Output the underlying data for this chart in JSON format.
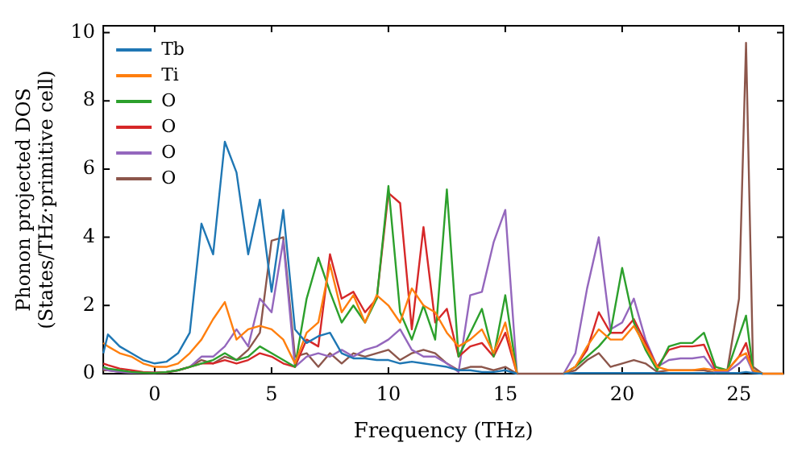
{
  "chart_data": {
    "type": "line",
    "xlabel": "Frequency (THz)",
    "ylabel": "Phonon projected DOS\n(States/THz·primitive cell)",
    "x": [
      -2.2,
      -2,
      -1.5,
      -1,
      -0.5,
      0,
      0.5,
      1,
      1.5,
      2,
      2.5,
      3,
      3.5,
      4,
      4.5,
      5,
      5.5,
      6,
      6.5,
      7,
      7.5,
      8,
      8.5,
      9,
      9.5,
      10,
      10.5,
      11,
      11.5,
      12,
      12.5,
      13,
      13.5,
      14,
      14.5,
      15,
      15.5,
      16,
      16.5,
      17,
      17.5,
      18,
      18.5,
      19,
      19.5,
      20,
      20.5,
      21,
      21.5,
      22,
      22.5,
      23,
      23.5,
      24,
      24.5,
      25,
      25.3,
      25.6,
      26,
      26.5,
      26.9
    ],
    "series": [
      {
        "name": "Tb",
        "color": "#1f77b4",
        "values": [
          0.6,
          1.15,
          0.8,
          0.6,
          0.4,
          0.3,
          0.35,
          0.6,
          1.2,
          4.4,
          3.5,
          6.8,
          5.9,
          3.5,
          5.1,
          2.4,
          4.8,
          1.3,
          0.9,
          1.1,
          1.2,
          0.6,
          0.45,
          0.45,
          0.4,
          0.4,
          0.3,
          0.35,
          0.3,
          0.25,
          0.2,
          0.1,
          0.1,
          0.05,
          0.05,
          0.1,
          0,
          null,
          null,
          null,
          0,
          0.02,
          0.02,
          0.02,
          0.02,
          0.02,
          0.02,
          0.02,
          0.02,
          0.02,
          0.02,
          0.02,
          0.02,
          0.02,
          0.02,
          0.02,
          0.05,
          0.02,
          0,
          null,
          null
        ]
      },
      {
        "name": "Ti",
        "color": "#ff7f0e",
        "values": [
          0.9,
          0.8,
          0.6,
          0.5,
          0.3,
          0.2,
          0.2,
          0.3,
          0.6,
          1.0,
          1.6,
          2.1,
          1.0,
          1.3,
          1.4,
          1.3,
          1.0,
          0.3,
          1.2,
          1.5,
          3.2,
          1.8,
          2.3,
          1.5,
          2.3,
          2.0,
          1.5,
          2.5,
          2.0,
          1.8,
          1.2,
          0.8,
          1.0,
          1.3,
          0.6,
          1.5,
          0,
          null,
          null,
          null,
          0,
          0.2,
          0.8,
          1.3,
          1.0,
          1.0,
          1.4,
          0.8,
          0.2,
          0.1,
          0.1,
          0.1,
          0.15,
          0.1,
          0.1,
          0.5,
          0.6,
          0.1,
          0,
          0,
          0
        ]
      },
      {
        "name": "O",
        "color": "#2ca02c",
        "values": [
          0.2,
          0.15,
          0.1,
          0.05,
          0.03,
          0.02,
          0.05,
          0.1,
          0.2,
          0.3,
          0.4,
          0.6,
          0.4,
          0.5,
          0.8,
          0.6,
          0.4,
          0.2,
          2.2,
          3.4,
          2.4,
          1.5,
          2.0,
          1.5,
          2.2,
          5.5,
          1.8,
          1.0,
          2.0,
          1.0,
          5.4,
          0.5,
          1.2,
          1.9,
          0.5,
          2.3,
          0,
          null,
          null,
          null,
          0,
          0.2,
          0.5,
          0.8,
          1.2,
          3.1,
          1.5,
          0.7,
          0.1,
          0.8,
          0.9,
          0.9,
          1.2,
          0.2,
          0.1,
          1.1,
          1.7,
          0.1,
          0,
          null,
          null
        ]
      },
      {
        "name": "O",
        "color": "#d62728",
        "values": [
          0.3,
          0.25,
          0.15,
          0.1,
          0.05,
          0.03,
          0.05,
          0.1,
          0.2,
          0.3,
          0.3,
          0.4,
          0.3,
          0.4,
          0.6,
          0.5,
          0.3,
          0.2,
          1.0,
          0.8,
          3.5,
          2.2,
          2.4,
          1.8,
          2.2,
          5.3,
          5.0,
          1.3,
          4.3,
          1.5,
          1.9,
          0.5,
          0.8,
          0.9,
          0.5,
          1.2,
          0,
          null,
          null,
          null,
          0,
          0.2,
          0.7,
          1.8,
          1.2,
          1.2,
          1.6,
          0.9,
          0.2,
          0.7,
          0.8,
          0.8,
          0.85,
          0.1,
          0.1,
          0.5,
          0.9,
          0.1,
          0,
          null,
          null
        ]
      },
      {
        "name": "O",
        "color": "#9467bd",
        "values": [
          0.15,
          0.1,
          0.05,
          0.03,
          0.03,
          0.03,
          0.05,
          0.1,
          0.2,
          0.5,
          0.5,
          0.8,
          1.3,
          0.8,
          2.2,
          1.8,
          3.9,
          0.2,
          0.5,
          0.6,
          0.5,
          0.7,
          0.5,
          0.7,
          0.8,
          1.0,
          1.3,
          0.7,
          0.5,
          0.5,
          0.3,
          0.05,
          2.3,
          2.4,
          3.85,
          4.8,
          0,
          null,
          null,
          null,
          0,
          0.6,
          2.5,
          4.0,
          1.3,
          1.5,
          2.2,
          1.0,
          0.2,
          0.4,
          0.45,
          0.45,
          0.5,
          0.05,
          0.05,
          0.3,
          0.5,
          0.05,
          0,
          null,
          null
        ]
      },
      {
        "name": "O",
        "color": "#8c564b",
        "values": [
          0.1,
          0.1,
          0.05,
          0.03,
          0.02,
          0.02,
          0.03,
          0.1,
          0.2,
          0.4,
          0.3,
          0.5,
          0.4,
          0.7,
          1.2,
          3.9,
          4.0,
          0.5,
          0.6,
          0.2,
          0.6,
          0.3,
          0.6,
          0.5,
          0.6,
          0.7,
          0.4,
          0.6,
          0.7,
          0.6,
          0.3,
          0.1,
          0.2,
          0.2,
          0.1,
          0.2,
          0,
          0,
          0,
          0,
          0,
          0.1,
          0.4,
          0.6,
          0.2,
          0.3,
          0.4,
          0.3,
          0.05,
          0.1,
          0.1,
          0.1,
          0.1,
          0.02,
          0.1,
          2.2,
          9.7,
          0.2,
          0,
          0,
          0
        ]
      }
    ],
    "xlim": [
      -2.2,
      26.9
    ],
    "xticks": [
      0,
      5,
      10,
      15,
      20,
      25
    ],
    "ylim": [
      0,
      10.2
    ],
    "yticks": [
      0,
      2,
      4,
      6,
      8,
      10
    ],
    "legend": "top left"
  }
}
